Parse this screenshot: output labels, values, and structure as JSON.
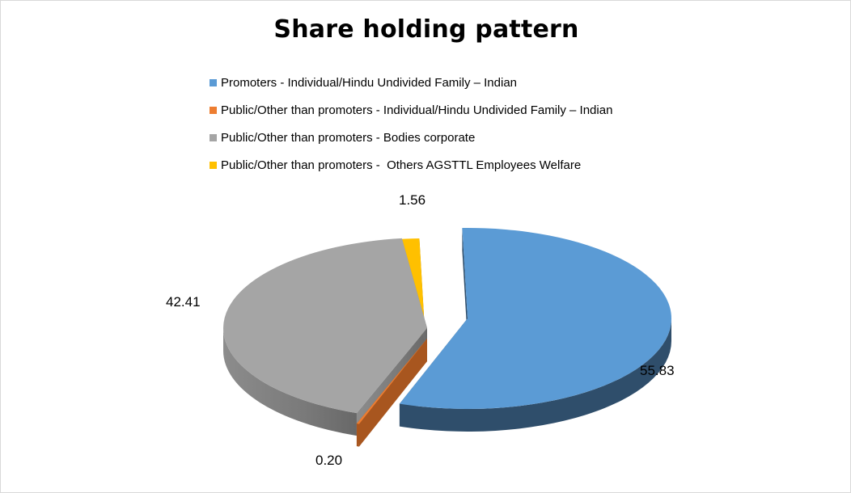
{
  "chart_data": {
    "type": "pie",
    "title": "Share holding pattern",
    "legend_position": "top",
    "slices": [
      {
        "label": "Promoters - Individual/Hindu Undivided Family – Indian",
        "value": 55.83,
        "value_label": "55.83",
        "color": "#5B9BD5",
        "side_color": "#2F4E6B"
      },
      {
        "label": "Public/Other than promoters - Individual/Hindu Undivided Family – Indian",
        "value": 0.2,
        "value_label": "0.20",
        "color": "#ED7D31",
        "side_color": "#A8561F"
      },
      {
        "label": "Public/Other than promoters - Bodies corporate",
        "value": 42.41,
        "value_label": "42.41",
        "color": "#A5A5A5",
        "side_color": "#6E6E6E"
      },
      {
        "label": "Public/Other than promoters -  Others AGSTTL Employees Welfare",
        "value": 1.56,
        "value_label": "1.56",
        "color": "#FFC000",
        "side_color": "#8A6A00"
      }
    ]
  }
}
